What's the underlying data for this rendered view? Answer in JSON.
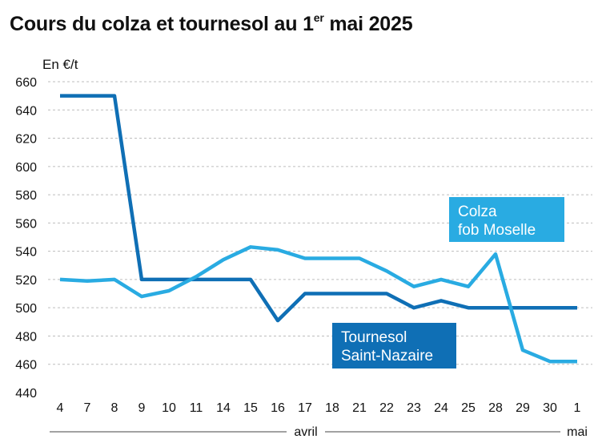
{
  "chart_data": {
    "type": "line",
    "title": "Cours du colza et tournesol au 1",
    "title_sup": "er",
    "title_tail": " mai 2025",
    "ylabel": "En €/t",
    "ylim": [
      440,
      660
    ],
    "yticks": [
      440,
      460,
      480,
      500,
      520,
      540,
      560,
      580,
      600,
      620,
      640,
      660
    ],
    "grid": "horizontal dashed",
    "categories": [
      "4",
      "7",
      "8",
      "9",
      "10",
      "11",
      "14",
      "15",
      "16",
      "17",
      "18",
      "21",
      "22",
      "23",
      "24",
      "25",
      "28",
      "29",
      "30",
      "1"
    ],
    "month_labels": [
      {
        "label": "avril",
        "from": 0,
        "to": 18
      },
      {
        "label": "mai",
        "from": 19,
        "to": 19
      }
    ],
    "series": [
      {
        "name": "Tournesol Saint-Nazaire",
        "label_lines": [
          "Tournesol",
          "Saint-Nazaire"
        ],
        "color": "#0f6fb5",
        "values": [
          650,
          650,
          650,
          520,
          520,
          520,
          520,
          520,
          491,
          510,
          510,
          510,
          510,
          500,
          505,
          500,
          500,
          500,
          500,
          500
        ]
      },
      {
        "name": "Colza fob Moselle",
        "label_lines": [
          "Colza",
          "fob Moselle"
        ],
        "color": "#29abe2",
        "values": [
          520,
          519,
          520,
          508,
          512,
          522,
          534,
          543,
          541,
          535,
          535,
          535,
          526,
          515,
          520,
          515,
          538,
          470,
          462,
          462
        ]
      }
    ]
  }
}
